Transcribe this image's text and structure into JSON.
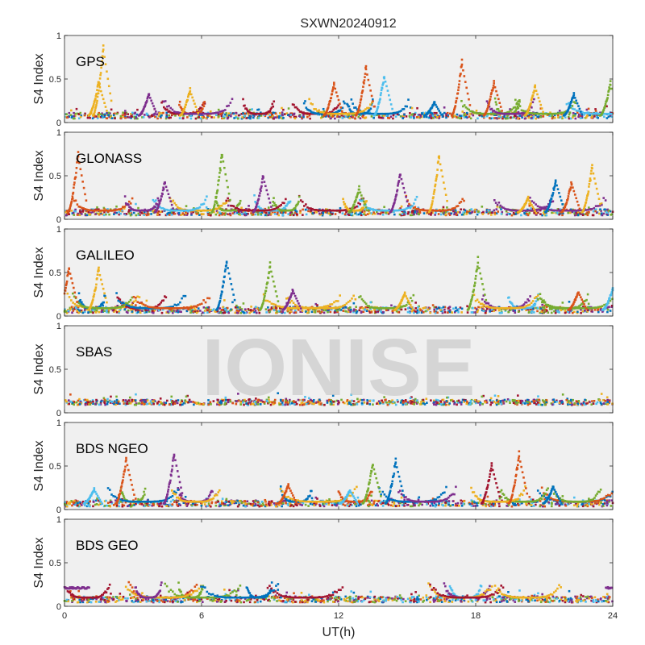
{
  "figure": {
    "title": "SXWN20240912",
    "xlabel": "UT(h)",
    "watermark": "IONISE",
    "axes_bg": "#f0f0f0",
    "colors": [
      "#0072BD",
      "#D95319",
      "#EDB120",
      "#7E2F8E",
      "#77AC30",
      "#4DBEEE",
      "#A2142F"
    ]
  },
  "chart_data": [
    {
      "type": "scatter",
      "panel": "GPS",
      "ylabel": "S4 Index",
      "xlim": [
        0,
        24
      ],
      "ylim": [
        0,
        1
      ],
      "xticks": [
        "0",
        "6",
        "12",
        "18",
        "24"
      ],
      "yticks": [
        "0",
        "0.5",
        "1"
      ],
      "grid": false,
      "baseline": 0.08,
      "spikes": [
        {
          "x": 1.6,
          "y": 0.93,
          "series": 2
        },
        {
          "x": 1.4,
          "y": 0.5,
          "series": 2
        },
        {
          "x": 3.6,
          "y": 0.35,
          "series": 3
        },
        {
          "x": 5.4,
          "y": 0.4,
          "series": 2
        },
        {
          "x": 11.7,
          "y": 0.48,
          "series": 1
        },
        {
          "x": 13.1,
          "y": 0.68,
          "series": 1
        },
        {
          "x": 13.9,
          "y": 0.58,
          "series": 5
        },
        {
          "x": 16.1,
          "y": 0.25,
          "series": 0
        },
        {
          "x": 17.3,
          "y": 0.74,
          "series": 1
        },
        {
          "x": 18.7,
          "y": 0.5,
          "series": 1
        },
        {
          "x": 20.5,
          "y": 0.45,
          "series": 2
        },
        {
          "x": 22.2,
          "y": 0.35,
          "series": 0
        },
        {
          "x": 23.8,
          "y": 0.48,
          "series": 4
        }
      ]
    },
    {
      "type": "scatter",
      "panel": "GLONASS",
      "ylabel": "S4 Index",
      "xlim": [
        0,
        24
      ],
      "ylim": [
        0,
        1
      ],
      "xticks": [
        "0",
        "6",
        "12",
        "18",
        "24"
      ],
      "yticks": [
        "0",
        "0.5",
        "1"
      ],
      "grid": false,
      "baseline": 0.08,
      "spikes": [
        {
          "x": 0.5,
          "y": 0.8,
          "series": 1
        },
        {
          "x": 4.3,
          "y": 0.46,
          "series": 3
        },
        {
          "x": 6.8,
          "y": 0.82,
          "series": 4
        },
        {
          "x": 8.6,
          "y": 0.53,
          "series": 3
        },
        {
          "x": 12.8,
          "y": 0.38,
          "series": 4
        },
        {
          "x": 14.6,
          "y": 0.57,
          "series": 3
        },
        {
          "x": 16.3,
          "y": 0.78,
          "series": 2
        },
        {
          "x": 20.2,
          "y": 0.26,
          "series": 2
        },
        {
          "x": 21.4,
          "y": 0.48,
          "series": 0
        },
        {
          "x": 23.0,
          "y": 0.65,
          "series": 2
        },
        {
          "x": 22.1,
          "y": 0.45,
          "series": 1
        }
      ]
    },
    {
      "type": "scatter",
      "panel": "GALILEO",
      "ylabel": "S4 Index",
      "xlim": [
        0,
        24
      ],
      "ylim": [
        0,
        1
      ],
      "xticks": [
        "0",
        "6",
        "12",
        "18",
        "24"
      ],
      "yticks": [
        "0",
        "0.5",
        "1"
      ],
      "grid": false,
      "baseline": 0.07,
      "spikes": [
        {
          "x": 0.1,
          "y": 0.6,
          "series": 1
        },
        {
          "x": 1.4,
          "y": 0.58,
          "series": 2
        },
        {
          "x": 7.0,
          "y": 0.68,
          "series": 0
        },
        {
          "x": 8.9,
          "y": 0.63,
          "series": 4
        },
        {
          "x": 9.9,
          "y": 0.32,
          "series": 3
        },
        {
          "x": 14.8,
          "y": 0.28,
          "series": 2
        },
        {
          "x": 18.0,
          "y": 0.68,
          "series": 4
        },
        {
          "x": 22.4,
          "y": 0.3,
          "series": 1
        },
        {
          "x": 23.9,
          "y": 0.33,
          "series": 5
        }
      ]
    },
    {
      "type": "scatter",
      "panel": "SBAS",
      "ylabel": "S4 Index",
      "xlim": [
        0,
        24
      ],
      "ylim": [
        0,
        1
      ],
      "xticks": [
        "0",
        "6",
        "12",
        "18",
        "24"
      ],
      "yticks": [
        "0",
        "0.5",
        "1"
      ],
      "grid": false,
      "baseline": 0.12,
      "spikes": []
    },
    {
      "type": "scatter",
      "panel": "BDS NGEO",
      "ylabel": "S4 Index",
      "xlim": [
        0,
        24
      ],
      "ylim": [
        0,
        1
      ],
      "xticks": [
        "0",
        "6",
        "12",
        "18",
        "24"
      ],
      "yticks": [
        "0",
        "0.5",
        "1"
      ],
      "grid": false,
      "baseline": 0.07,
      "spikes": [
        {
          "x": 1.2,
          "y": 0.25,
          "series": 5
        },
        {
          "x": 2.6,
          "y": 0.63,
          "series": 1
        },
        {
          "x": 4.7,
          "y": 0.7,
          "series": 3
        },
        {
          "x": 9.7,
          "y": 0.3,
          "series": 1
        },
        {
          "x": 12.4,
          "y": 0.24,
          "series": 5
        },
        {
          "x": 13.4,
          "y": 0.57,
          "series": 4
        },
        {
          "x": 14.4,
          "y": 0.6,
          "series": 0
        },
        {
          "x": 18.6,
          "y": 0.56,
          "series": 6
        },
        {
          "x": 19.8,
          "y": 0.68,
          "series": 1
        },
        {
          "x": 21.3,
          "y": 0.28,
          "series": 0
        }
      ]
    },
    {
      "type": "scatter",
      "panel": "BDS GEO",
      "ylabel": "S4 Index",
      "xlim": [
        0,
        24
      ],
      "ylim": [
        0,
        1
      ],
      "xticks": [
        "0",
        "6",
        "12",
        "18",
        "24"
      ],
      "yticks": [
        "0",
        "0.5",
        "1"
      ],
      "grid": false,
      "baseline": 0.08,
      "spikes": [],
      "geo_tracks": [
        {
          "x0": 0.0,
          "x1": 1.1,
          "y": 0.21,
          "series": 3
        },
        {
          "x0": 23.7,
          "x1": 24.0,
          "y": 0.21,
          "series": 3
        }
      ]
    }
  ]
}
